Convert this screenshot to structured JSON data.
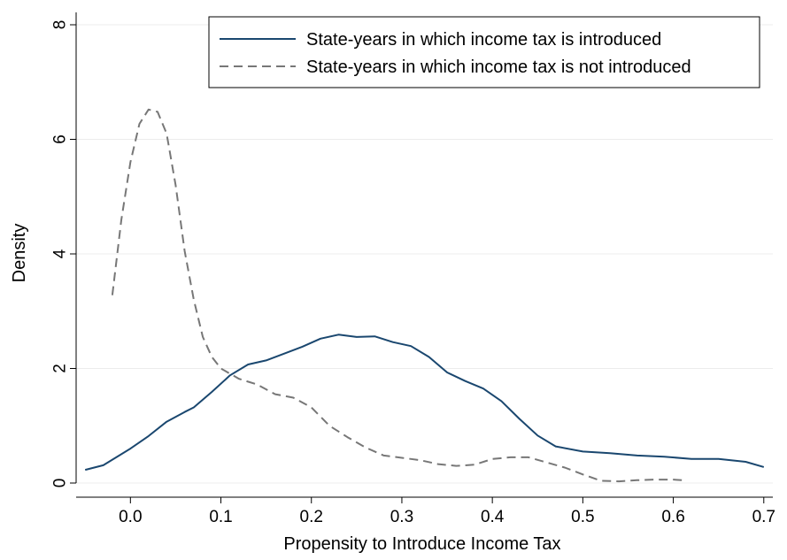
{
  "chart_data": {
    "type": "line",
    "title": "",
    "xlabel": "Propensity to Introduce Income Tax",
    "ylabel": "Density",
    "xlim": [
      -0.06,
      0.71
    ],
    "ylim": [
      0,
      8
    ],
    "xticks": [
      "0.0",
      "0.1",
      "0.2",
      "0.3",
      "0.4",
      "0.5",
      "0.6",
      "0.7"
    ],
    "yticks": [
      "0",
      "2",
      "4",
      "6",
      "8"
    ],
    "grid": "horizontal",
    "legend": {
      "placement": "top-right"
    },
    "series": [
      {
        "name": "State-years in which income tax is introduced",
        "color": "#1a476f",
        "style": "solid",
        "points": [
          [
            -0.05,
            0.23
          ],
          [
            -0.03,
            0.31
          ],
          [
            0.0,
            0.6
          ],
          [
            0.02,
            0.82
          ],
          [
            0.04,
            1.07
          ],
          [
            0.06,
            1.24
          ],
          [
            0.07,
            1.32
          ],
          [
            0.09,
            1.59
          ],
          [
            0.11,
            1.88
          ],
          [
            0.13,
            2.07
          ],
          [
            0.15,
            2.14
          ],
          [
            0.17,
            2.26
          ],
          [
            0.19,
            2.38
          ],
          [
            0.21,
            2.52
          ],
          [
            0.23,
            2.59
          ],
          [
            0.25,
            2.55
          ],
          [
            0.27,
            2.56
          ],
          [
            0.29,
            2.46
          ],
          [
            0.31,
            2.39
          ],
          [
            0.33,
            2.2
          ],
          [
            0.35,
            1.93
          ],
          [
            0.37,
            1.78
          ],
          [
            0.39,
            1.65
          ],
          [
            0.41,
            1.43
          ],
          [
            0.43,
            1.12
          ],
          [
            0.45,
            0.83
          ],
          [
            0.47,
            0.64
          ],
          [
            0.5,
            0.55
          ],
          [
            0.53,
            0.52
          ],
          [
            0.56,
            0.48
          ],
          [
            0.59,
            0.46
          ],
          [
            0.62,
            0.42
          ],
          [
            0.65,
            0.42
          ],
          [
            0.68,
            0.37
          ],
          [
            0.7,
            0.28
          ]
        ]
      },
      {
        "name": "State-years in which income tax is not introduced",
        "color": "#777777",
        "style": "dashed",
        "points": [
          [
            -0.02,
            3.28
          ],
          [
            -0.01,
            4.6
          ],
          [
            0.0,
            5.6
          ],
          [
            0.01,
            6.27
          ],
          [
            0.02,
            6.52
          ],
          [
            0.03,
            6.48
          ],
          [
            0.04,
            6.1
          ],
          [
            0.05,
            5.2
          ],
          [
            0.06,
            4.05
          ],
          [
            0.07,
            3.2
          ],
          [
            0.08,
            2.55
          ],
          [
            0.09,
            2.2
          ],
          [
            0.1,
            2.0
          ],
          [
            0.12,
            1.82
          ],
          [
            0.14,
            1.72
          ],
          [
            0.16,
            1.55
          ],
          [
            0.18,
            1.49
          ],
          [
            0.2,
            1.32
          ],
          [
            0.22,
            1.0
          ],
          [
            0.24,
            0.8
          ],
          [
            0.26,
            0.62
          ],
          [
            0.28,
            0.48
          ],
          [
            0.3,
            0.44
          ],
          [
            0.32,
            0.4
          ],
          [
            0.34,
            0.33
          ],
          [
            0.36,
            0.3
          ],
          [
            0.38,
            0.32
          ],
          [
            0.4,
            0.42
          ],
          [
            0.42,
            0.45
          ],
          [
            0.44,
            0.45
          ],
          [
            0.46,
            0.36
          ],
          [
            0.48,
            0.27
          ],
          [
            0.5,
            0.15
          ],
          [
            0.52,
            0.04
          ],
          [
            0.54,
            0.03
          ],
          [
            0.56,
            0.05
          ],
          [
            0.58,
            0.06
          ],
          [
            0.6,
            0.06
          ],
          [
            0.61,
            0.05
          ]
        ]
      }
    ]
  }
}
